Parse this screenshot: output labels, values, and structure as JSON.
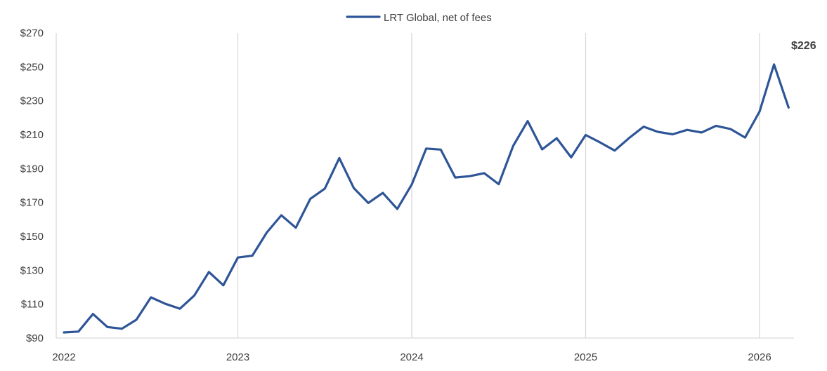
{
  "chart_data": {
    "type": "line",
    "title": "",
    "xlabel": "",
    "ylabel": "",
    "ylim": [
      90,
      270
    ],
    "xlim": [
      "2022-01",
      "2026-03"
    ],
    "grid": "vertical-yearly",
    "legend_position": "top-center",
    "y_ticks": [
      90,
      110,
      130,
      150,
      170,
      190,
      210,
      230,
      250,
      270
    ],
    "y_tick_labels": [
      "$90",
      "$110",
      "$130",
      "$150",
      "$170",
      "$190",
      "$210",
      "$230",
      "$250",
      "$270"
    ],
    "x_ticks": [
      "2022-01",
      "2023-01",
      "2024-01",
      "2025-01",
      "2026-01"
    ],
    "x_tick_labels": [
      "2022",
      "2023",
      "2024",
      "2025",
      "2026"
    ],
    "series": [
      {
        "name": "LRT Global, net of fees",
        "color": "#2E5597",
        "x": [
          "2022-01",
          "2022-02",
          "2022-03",
          "2022-04",
          "2022-05",
          "2022-06",
          "2022-07",
          "2022-08",
          "2022-09",
          "2022-10",
          "2022-11",
          "2022-12",
          "2023-01",
          "2023-02",
          "2023-03",
          "2023-04",
          "2023-05",
          "2023-06",
          "2023-07",
          "2023-08",
          "2023-09",
          "2023-10",
          "2023-11",
          "2023-12",
          "2024-01",
          "2024-02",
          "2024-03",
          "2024-04",
          "2024-05",
          "2024-06",
          "2024-07",
          "2024-08",
          "2024-09",
          "2024-10",
          "2024-11",
          "2024-12",
          "2025-01",
          "2025-02",
          "2025-03",
          "2025-04",
          "2025-05",
          "2025-06",
          "2025-07",
          "2025-08",
          "2025-09",
          "2025-10",
          "2025-11",
          "2025-12",
          "2026-01",
          "2026-02",
          "2026-03"
        ],
        "values": [
          93.3,
          93.8,
          104.2,
          96.5,
          95.5,
          100.8,
          114.0,
          110.2,
          107.3,
          115.1,
          129.0,
          121.1,
          137.5,
          138.6,
          152.3,
          162.4,
          155.1,
          172.1,
          178.2,
          196.2,
          178.5,
          169.7,
          175.6,
          166.2,
          180.6,
          201.8,
          201.2,
          184.7,
          185.5,
          187.3,
          180.8,
          203.4,
          218.0,
          201.3,
          207.9,
          196.6,
          209.8,
          205.4,
          200.6,
          208.0,
          214.7,
          211.6,
          210.2,
          212.8,
          211.3,
          215.2,
          213.3,
          208.3,
          223.6,
          251.4,
          226.0
        ]
      }
    ],
    "end_label": "$226"
  }
}
